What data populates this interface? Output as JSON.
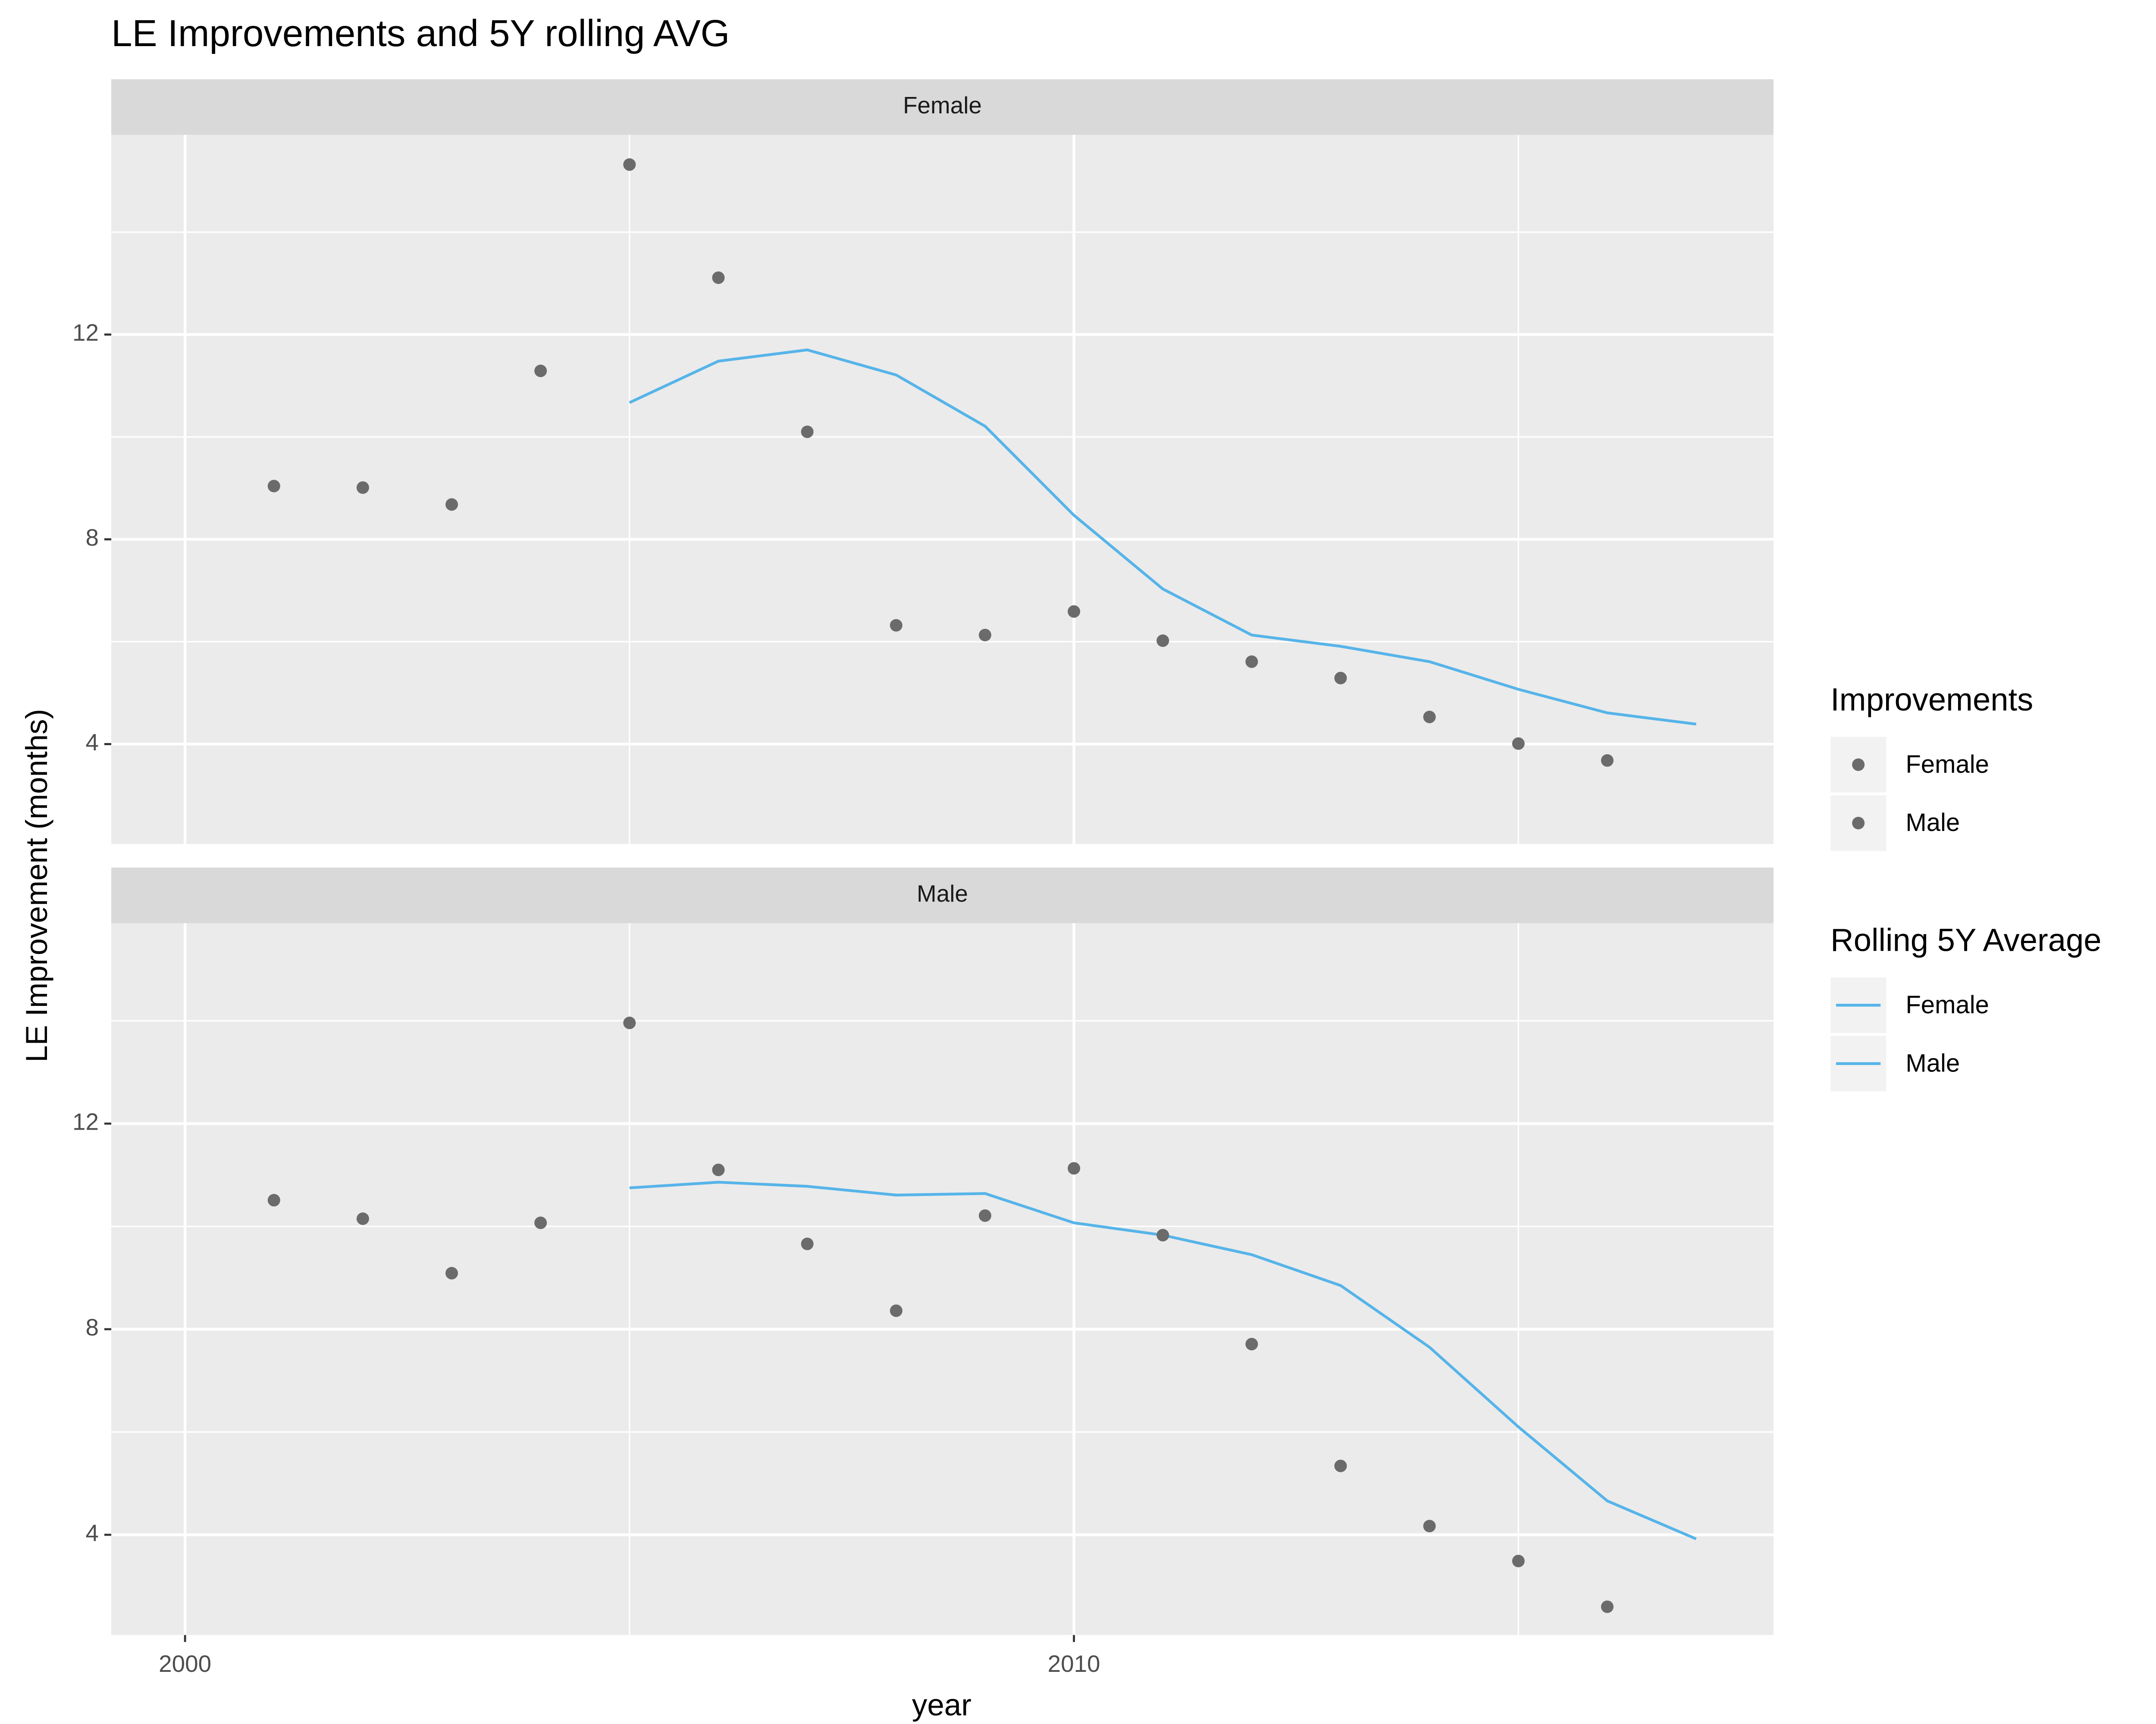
{
  "chart_data": {
    "type": "facet_scatter_line",
    "title": "LE Improvements and 5Y rolling AVG",
    "x_label": "year",
    "y_label": "LE Improvement (months)",
    "xlim": [
      1999.17,
      2017.87
    ],
    "xticks": [
      2000,
      2010
    ],
    "minor_xticks": [
      2005,
      2015
    ],
    "ylim": [
      2.05,
      15.9
    ],
    "yticks": [
      4,
      8,
      12
    ],
    "minor_yticks": [
      6,
      10,
      14
    ],
    "grid": true,
    "point_color": "#6b6b6b",
    "line_color": "#56B4E9",
    "legends": [
      {
        "title": "Improvements",
        "kind": "point",
        "entries": [
          "Female",
          "Male"
        ]
      },
      {
        "title": "Rolling 5Y Average",
        "kind": "line",
        "entries": [
          "Female",
          "Male"
        ]
      }
    ],
    "panels": [
      {
        "name": "Female",
        "x": [
          2001,
          2002,
          2003,
          2004,
          2005,
          2006,
          2007,
          2008,
          2009,
          2010,
          2011,
          2012,
          2013,
          2014,
          2015,
          2016,
          2017
        ],
        "points": [
          9.04,
          9.01,
          8.68,
          11.29,
          15.32,
          13.11,
          10.1,
          6.32,
          6.13,
          6.59,
          6.02,
          5.61,
          5.29,
          4.53,
          4.01,
          3.68,
          null
        ],
        "avg": [
          null,
          null,
          null,
          null,
          10.67,
          11.48,
          11.7,
          11.21,
          10.21,
          8.47,
          7.03,
          6.13,
          5.91,
          5.61,
          5.07,
          4.61,
          4.39
        ]
      },
      {
        "name": "Male",
        "x": [
          2001,
          2002,
          2003,
          2004,
          2005,
          2006,
          2007,
          2008,
          2009,
          2010,
          2011,
          2012,
          2013,
          2014,
          2015,
          2016,
          2017
        ],
        "points": [
          10.51,
          10.15,
          9.09,
          10.07,
          13.96,
          11.1,
          9.66,
          8.36,
          10.21,
          11.13,
          9.83,
          7.71,
          5.34,
          4.17,
          3.49,
          2.6,
          null
        ],
        "avg": [
          null,
          null,
          null,
          null,
          10.75,
          10.86,
          10.78,
          10.61,
          10.64,
          10.07,
          9.83,
          9.45,
          8.85,
          7.65,
          6.1,
          4.66,
          3.92
        ]
      }
    ]
  }
}
